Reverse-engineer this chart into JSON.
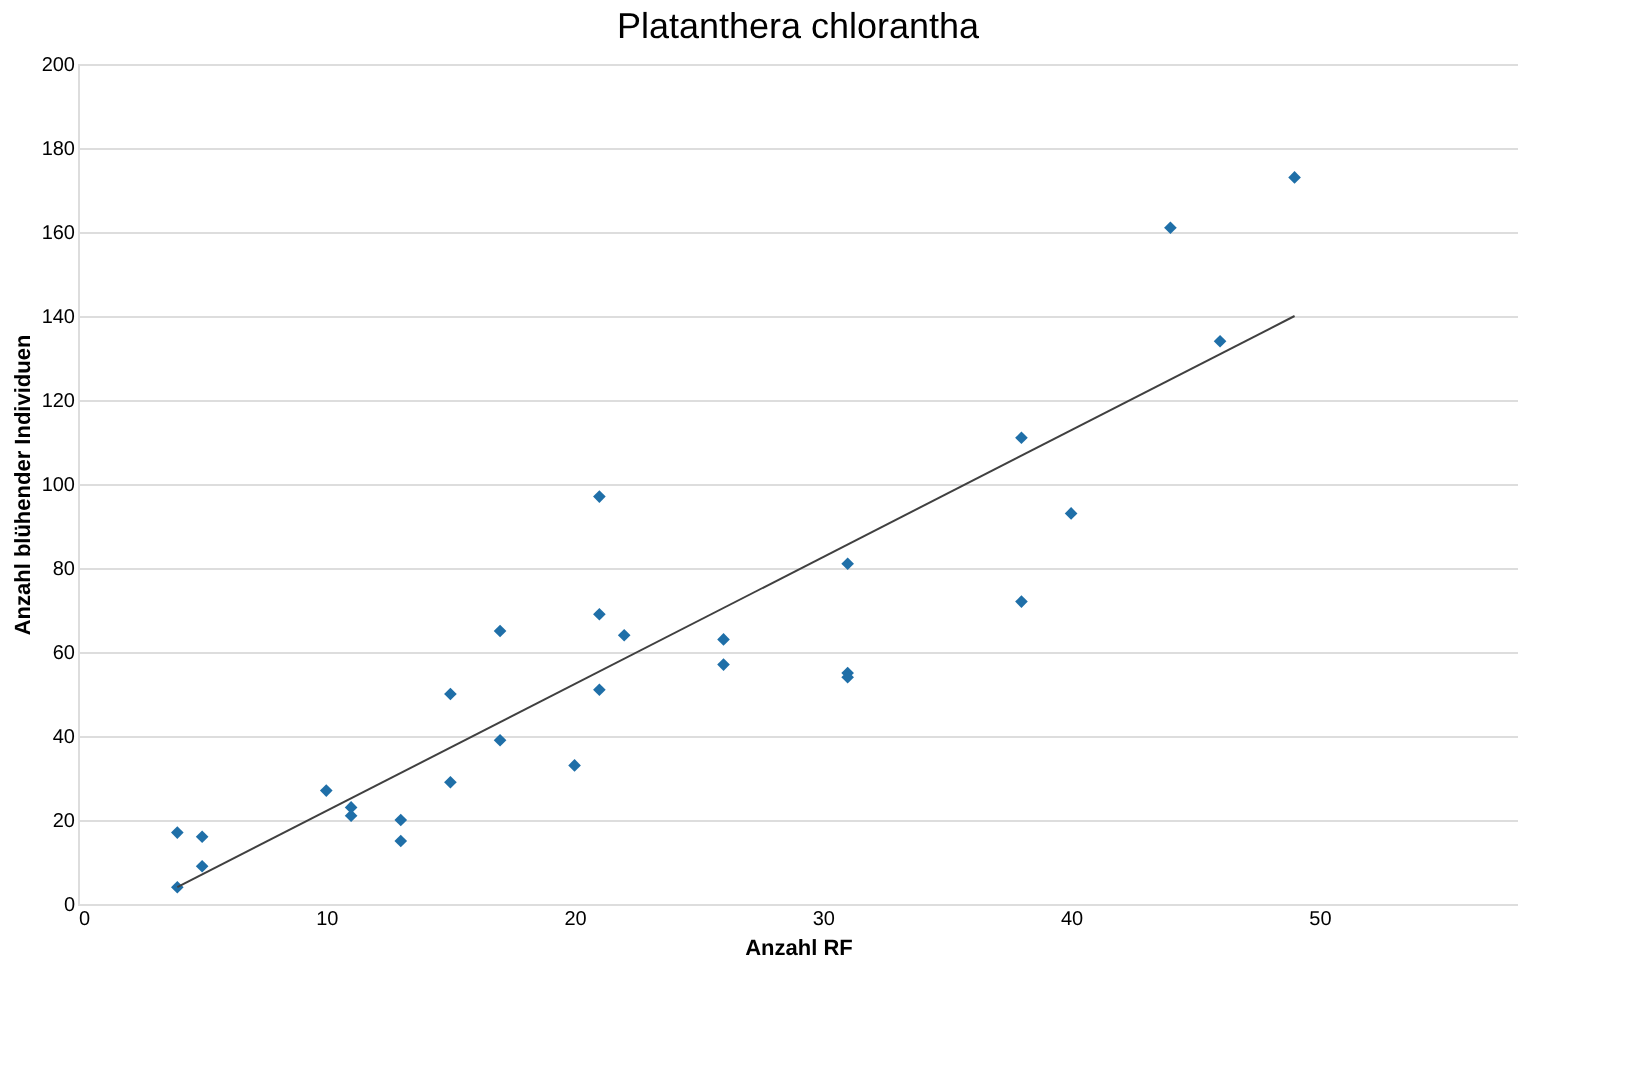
{
  "chart_data": {
    "type": "scatter",
    "title": "Platanthera chlorantha",
    "xlabel": "Anzahl RF",
    "ylabel": "Anzahl blühender Individuen",
    "xlim": [
      0,
      58
    ],
    "xticks": [
      0,
      10,
      20,
      30,
      40,
      50
    ],
    "ylim": [
      0,
      200
    ],
    "yticks": [
      0,
      20,
      40,
      60,
      80,
      100,
      120,
      140,
      160,
      180,
      200
    ],
    "grid": "y",
    "marker": "diamond",
    "series": [
      {
        "type": "scatter",
        "color": "#1f6fa8",
        "x": [
          4,
          4,
          5,
          5,
          10,
          11,
          11,
          13,
          13,
          15,
          15,
          17,
          17,
          20,
          21,
          21,
          21,
          22,
          26,
          26,
          31,
          31,
          31,
          38,
          38,
          40,
          44,
          46,
          49
        ],
        "values": [
          4,
          17,
          16,
          9,
          27,
          23,
          21,
          20,
          15,
          50,
          29,
          65,
          39,
          33,
          97,
          69,
          51,
          64,
          63,
          57,
          81,
          55,
          54,
          111,
          72,
          93,
          161,
          134,
          173
        ]
      },
      {
        "type": "line",
        "color": "#404040",
        "marker": "none",
        "line_style": "solid",
        "x": [
          4,
          49
        ],
        "values": [
          4,
          140
        ]
      }
    ]
  }
}
